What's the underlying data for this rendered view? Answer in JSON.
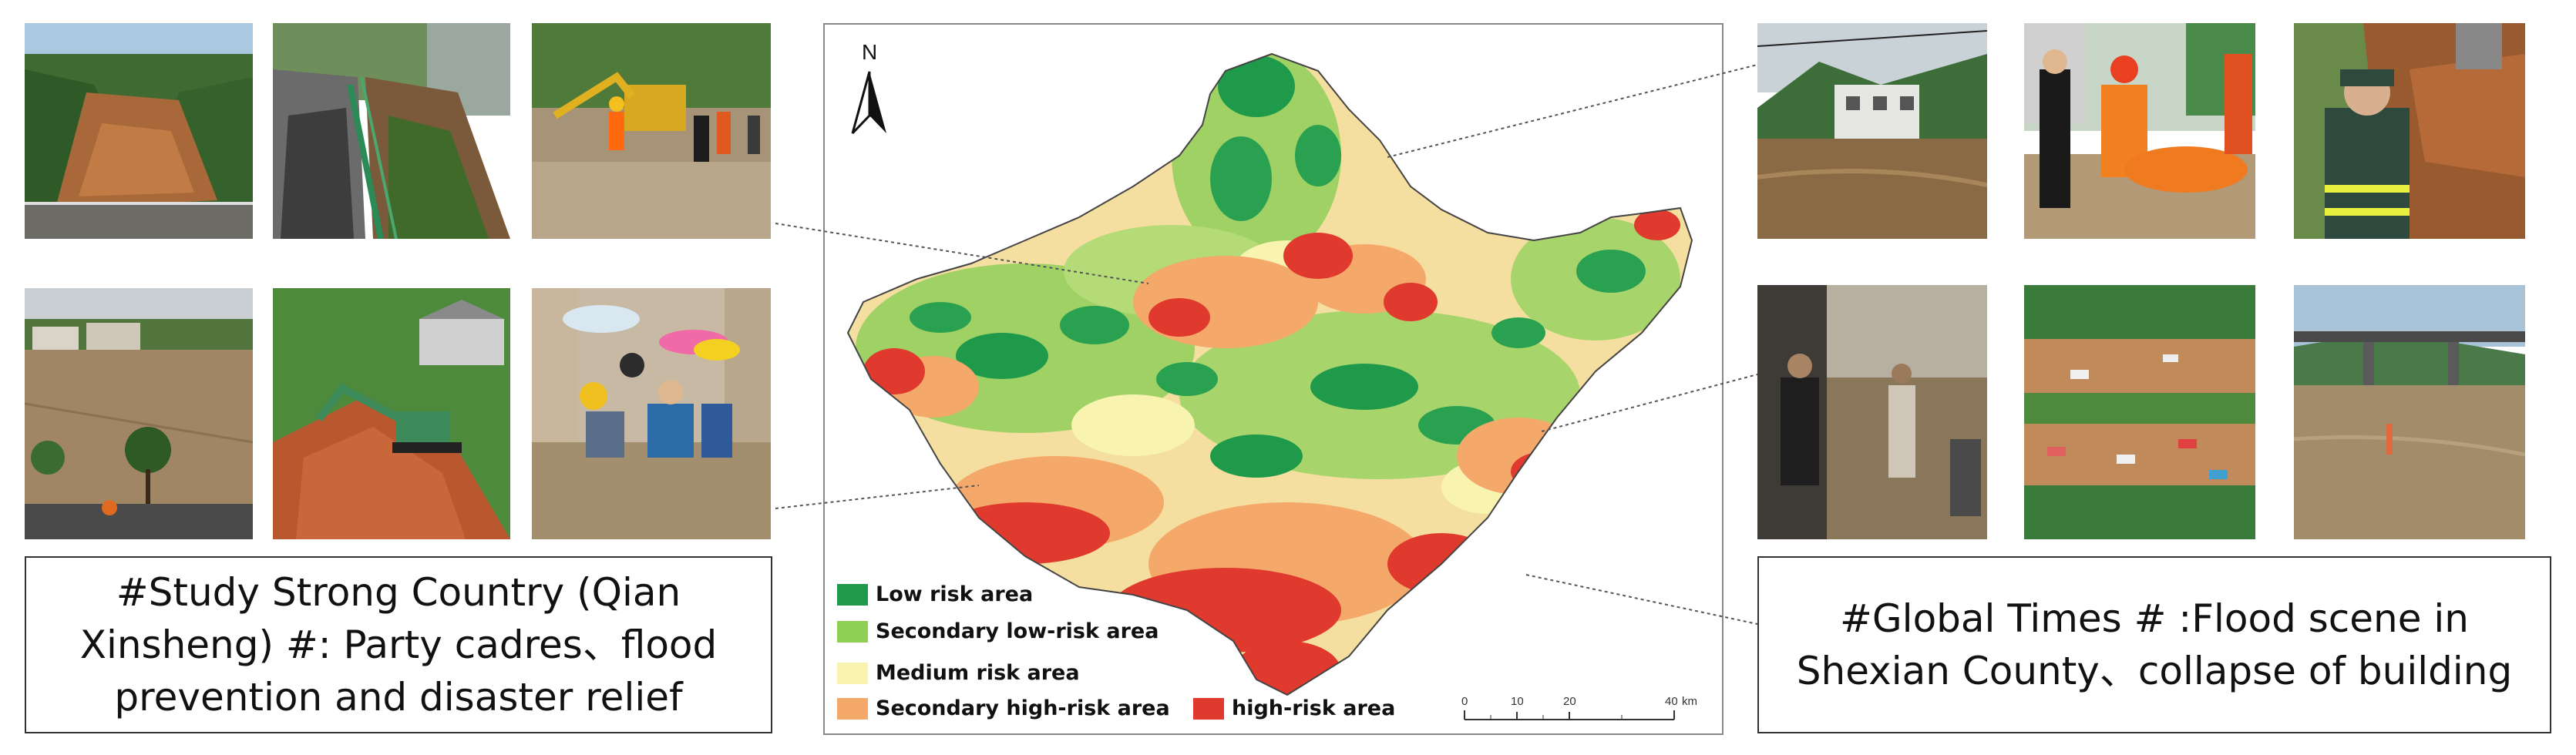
{
  "left_caption": "#Study Strong Country (Qian Xinsheng) #: Party cadres、flood prevention and disaster relief",
  "right_caption": "#Global Times # :Flood scene in Shexian County、collapse of building",
  "map": {
    "north_label": "N",
    "legend": [
      {
        "label": "Low risk area",
        "color": "#1f9a4a"
      },
      {
        "label": "Secondary low-risk area",
        "color": "#8fcf55"
      },
      {
        "label": "Medium risk area",
        "color": "#f8f4b0"
      },
      {
        "label": "Secondary high-risk area",
        "color": "#f4a86a"
      },
      {
        "label": "high-risk area",
        "color": "#e03a2e"
      }
    ],
    "scale": {
      "ticks": [
        "0",
        "10",
        "20",
        "40"
      ],
      "unit": "km"
    }
  },
  "photos_left": [
    {
      "icon": "landslide-road-photo"
    },
    {
      "icon": "collapsed-road-photo"
    },
    {
      "icon": "excavator-flood-photo"
    },
    {
      "icon": "flooded-town-photo"
    },
    {
      "icon": "excavator-landslide-photo"
    },
    {
      "icon": "rescue-wading-photo"
    }
  ],
  "photos_right": [
    {
      "icon": "flood-river-houses-photo"
    },
    {
      "icon": "rescue-boat-photo"
    },
    {
      "icon": "traffic-police-photo"
    },
    {
      "icon": "flooded-street-people-photo"
    },
    {
      "icon": "aerial-flood-road-photo"
    },
    {
      "icon": "flooded-bridge-photo"
    }
  ]
}
